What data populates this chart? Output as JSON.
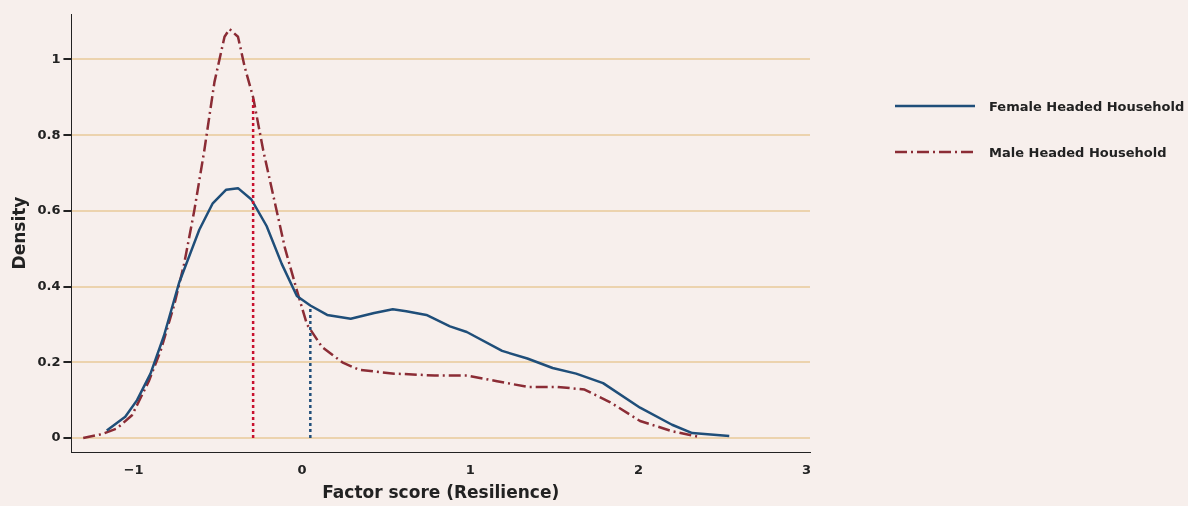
{
  "chart_data": {
    "type": "line",
    "xlabel": "Factor score (Resilience)",
    "ylabel": "Density",
    "xlim": [
      -1.37,
      3.02
    ],
    "xticks": [
      -1,
      0,
      1,
      2,
      3
    ],
    "ylim": [
      -0.037,
      1.12
    ],
    "yticks": [
      0,
      0.2,
      0.4,
      0.6,
      0.8,
      1
    ],
    "grid": "y",
    "legend": "right",
    "marker": "none",
    "series": [
      {
        "name": "Female Headed Household",
        "color": "#1f4e79",
        "line_style": "solid",
        "x": [
          -1.16,
          -1.05,
          -0.98,
          -0.9,
          -0.82,
          -0.73,
          -0.61,
          -0.53,
          -0.45,
          -0.38,
          -0.3,
          -0.21,
          -0.12,
          -0.03,
          0.05,
          0.15,
          0.29,
          0.43,
          0.54,
          0.62,
          0.74,
          0.88,
          0.98,
          1.19,
          1.34,
          1.49,
          1.63,
          1.79,
          2.01,
          2.2,
          2.32,
          2.54
        ],
        "values": [
          0.02,
          0.056,
          0.1,
          0.17,
          0.27,
          0.41,
          0.55,
          0.62,
          0.656,
          0.66,
          0.63,
          0.56,
          0.46,
          0.375,
          0.35,
          0.325,
          0.315,
          0.33,
          0.34,
          0.335,
          0.325,
          0.295,
          0.28,
          0.23,
          0.21,
          0.185,
          0.17,
          0.145,
          0.08,
          0.035,
          0.013,
          0.005
        ]
      },
      {
        "name": "Male Headed Household",
        "color": "#8b2c35",
        "line_style": "dashed",
        "x": [
          -1.3,
          -1.19,
          -1.1,
          -1.01,
          -0.91,
          -0.84,
          -0.76,
          -0.7,
          -0.64,
          -0.58,
          -0.52,
          -0.46,
          -0.43,
          -0.38,
          -0.34,
          -0.29,
          -0.23,
          -0.16,
          -0.1,
          -0.03,
          0.03,
          0.12,
          0.24,
          0.34,
          0.55,
          0.79,
          0.98,
          1.16,
          1.34,
          1.52,
          1.68,
          1.83,
          2.01,
          2.2,
          2.36
        ],
        "values": [
          0,
          0.01,
          0.025,
          0.06,
          0.15,
          0.23,
          0.35,
          0.46,
          0.6,
          0.76,
          0.94,
          1.06,
          1.08,
          1.06,
          0.98,
          0.9,
          0.76,
          0.62,
          0.5,
          0.39,
          0.3,
          0.24,
          0.2,
          0.18,
          0.17,
          0.165,
          0.165,
          0.15,
          0.135,
          0.135,
          0.128,
          0.095,
          0.045,
          0.018,
          0.003
        ]
      }
    ],
    "ref_lines": [
      {
        "axis": "x",
        "value": -0.29,
        "color": "#c8102e",
        "line_style": "dotted"
      },
      {
        "axis": "x",
        "value": 0.05,
        "color": "#1f4e79",
        "line_style": "dotted"
      }
    ]
  }
}
